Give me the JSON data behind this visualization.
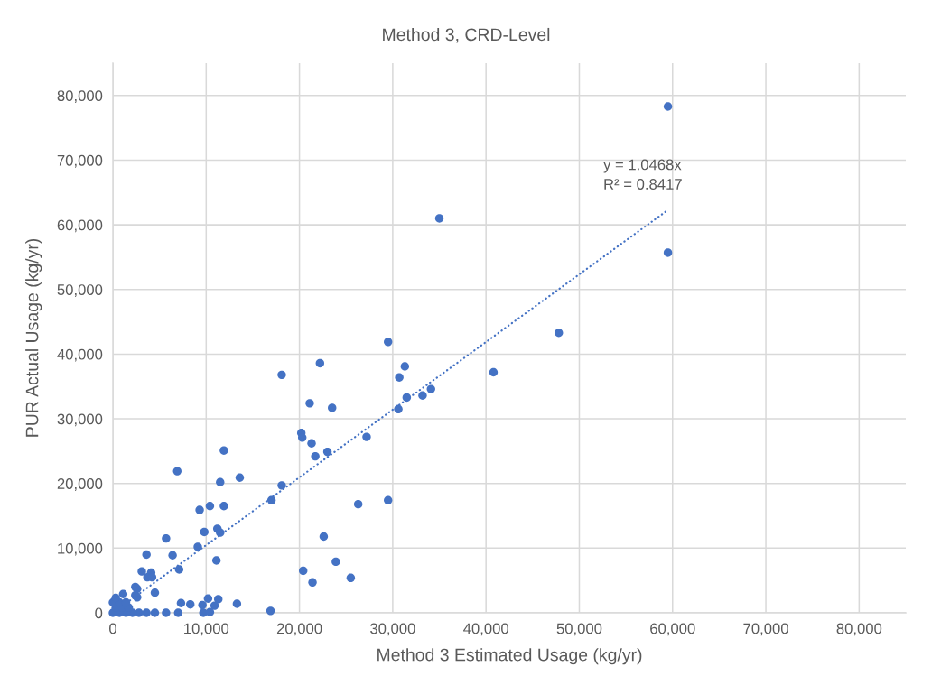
{
  "chart_data": {
    "type": "scatter",
    "title": "Method 3, CRD-Level",
    "xlabel": "Method 3 Estimated Usage (kg/yr)",
    "ylabel": "PUR Actual Usage (kg/yr)",
    "xlim": [
      0,
      85000
    ],
    "ylim": [
      0,
      85000
    ],
    "xticks": [
      0,
      {
        "value": 10000,
        "label": "10,000"
      },
      {
        "value": 20000,
        "label": "20,000"
      },
      {
        "value": 30000,
        "label": "30,000"
      },
      {
        "value": 40000,
        "label": "40,000"
      },
      {
        "value": 50000,
        "label": "50,000"
      },
      {
        "value": 60000,
        "label": "60,000"
      },
      {
        "value": 70000,
        "label": "70,000"
      },
      {
        "value": 80000,
        "label": "80,000"
      }
    ],
    "yticks": [
      0,
      {
        "value": 10000,
        "label": "10,000"
      },
      {
        "value": 20000,
        "label": "20,000"
      },
      {
        "value": 30000,
        "label": "30,000"
      },
      {
        "value": 40000,
        "label": "40,000"
      },
      {
        "value": 50000,
        "label": "50,000"
      },
      {
        "value": 60000,
        "label": "60,000"
      },
      {
        "value": 70000,
        "label": "70,000"
      },
      {
        "value": 80000,
        "label": "80,000"
      }
    ],
    "grid": true,
    "marker": "circle",
    "series": [
      {
        "color": "#4472c4",
        "x": [
          59500,
          35000,
          59500,
          47800,
          29500,
          40800,
          31300,
          30700,
          34100,
          33200,
          31500,
          30600,
          22200,
          18100,
          21100,
          23500,
          20200,
          20300,
          21300,
          27200,
          21700,
          23000,
          18100,
          17000,
          26300,
          29500,
          22600,
          23900,
          20400,
          21400,
          25500,
          16900,
          11900,
          6900,
          11500,
          13600,
          9300,
          10400,
          11900,
          9800,
          11200,
          11500,
          5700,
          9100,
          3600,
          6400,
          11100,
          7100,
          3100,
          4100,
          3700,
          4200,
          2400,
          2600,
          2400,
          2600,
          4500,
          1100,
          7300,
          8300,
          9600,
          10200,
          10900,
          11300,
          13300,
          5700,
          7000,
          9700,
          10400,
          4500,
          3600,
          2800,
          2100,
          1400,
          700,
          0,
          300,
          1000,
          1700,
          0,
          700,
          1400,
          300
        ],
        "values": [
          78300,
          61000,
          55700,
          43300,
          41900,
          37200,
          38100,
          36400,
          34600,
          33600,
          33300,
          31500,
          38600,
          36800,
          32400,
          31700,
          27800,
          27100,
          26200,
          27200,
          24200,
          24900,
          19700,
          17400,
          16800,
          17400,
          11800,
          7900,
          6500,
          4700,
          5400,
          300,
          25100,
          21900,
          20200,
          20900,
          15900,
          16500,
          16500,
          12500,
          13000,
          12400,
          11500,
          10200,
          9000,
          8900,
          8100,
          6700,
          6400,
          6200,
          5500,
          5500,
          4000,
          3700,
          2700,
          2400,
          3100,
          2900,
          1500,
          1300,
          1200,
          2200,
          1100,
          2100,
          1400,
          0,
          0,
          0,
          100,
          0,
          0,
          0,
          0,
          0,
          0,
          0,
          800,
          800,
          800,
          1600,
          1600,
          1600,
          2300
        ]
      },
      {
        "type": "line",
        "color": "#4472c4",
        "x": [
          0,
          59500
        ],
        "values": [
          0,
          62300
        ],
        "line_style": "dotted",
        "marker": "none"
      }
    ],
    "annotations": [
      {
        "text": "y = 1.0468x\nR² = 0.8417",
        "x": 59500,
        "y": 62300
      }
    ]
  }
}
